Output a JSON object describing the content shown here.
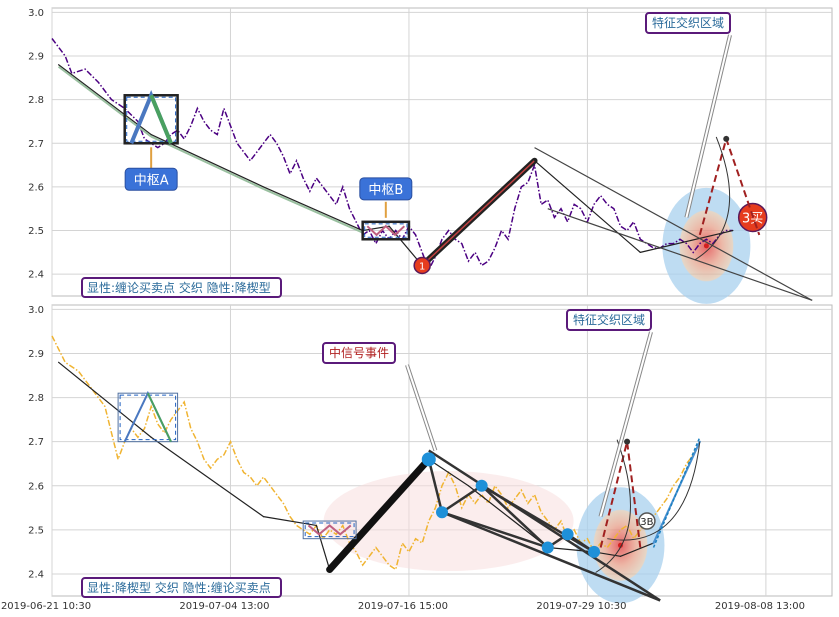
{
  "chart_data": [
    {
      "type": "line",
      "panel": "top",
      "ylim": [
        2.35,
        3.01
      ],
      "yticks": [
        2.4,
        2.5,
        2.6,
        2.7,
        2.8,
        2.9,
        3.0
      ],
      "grid": true,
      "series_color": "#4b0082",
      "price": [
        [
          0,
          2.94
        ],
        [
          2,
          2.9
        ],
        [
          3,
          2.86
        ],
        [
          5,
          2.87
        ],
        [
          7,
          2.84
        ],
        [
          9,
          2.8
        ],
        [
          11,
          2.78
        ],
        [
          13,
          2.75
        ],
        [
          14,
          2.71
        ],
        [
          16,
          2.69
        ],
        [
          17,
          2.7
        ],
        [
          18,
          2.72
        ],
        [
          19,
          2.73
        ],
        [
          20,
          2.71
        ],
        [
          21,
          2.74
        ],
        [
          22,
          2.78
        ],
        [
          23,
          2.75
        ],
        [
          24,
          2.73
        ],
        [
          25,
          2.72
        ],
        [
          26,
          2.78
        ],
        [
          27,
          2.74
        ],
        [
          28,
          2.7
        ],
        [
          29,
          2.68
        ],
        [
          30,
          2.66
        ],
        [
          31,
          2.68
        ],
        [
          32,
          2.7
        ],
        [
          33,
          2.72
        ],
        [
          34,
          2.7
        ],
        [
          35,
          2.67
        ],
        [
          36,
          2.63
        ],
        [
          37,
          2.66
        ],
        [
          38,
          2.62
        ],
        [
          39,
          2.59
        ],
        [
          40,
          2.62
        ],
        [
          41,
          2.6
        ],
        [
          42,
          2.58
        ],
        [
          43,
          2.56
        ],
        [
          44,
          2.6
        ],
        [
          45,
          2.55
        ],
        [
          46,
          2.52
        ],
        [
          47,
          2.49
        ],
        [
          48,
          2.5
        ],
        [
          49,
          2.47
        ],
        [
          50,
          2.5
        ],
        [
          51,
          2.48
        ],
        [
          52,
          2.5
        ],
        [
          53,
          2.48
        ],
        [
          54,
          2.51
        ],
        [
          55,
          2.49
        ],
        [
          56,
          2.45
        ],
        [
          57,
          2.41
        ],
        [
          58,
          2.44
        ],
        [
          59,
          2.48
        ],
        [
          60,
          2.5
        ],
        [
          61,
          2.48
        ],
        [
          62,
          2.47
        ],
        [
          63,
          2.43
        ],
        [
          64,
          2.45
        ],
        [
          65,
          2.42
        ],
        [
          66,
          2.43
        ],
        [
          67,
          2.46
        ],
        [
          68,
          2.5
        ],
        [
          69,
          2.48
        ],
        [
          70,
          2.55
        ],
        [
          71,
          2.6
        ],
        [
          72,
          2.61
        ],
        [
          73,
          2.65
        ],
        [
          74,
          2.56
        ],
        [
          75,
          2.57
        ],
        [
          76,
          2.53
        ],
        [
          77,
          2.55
        ],
        [
          78,
          2.52
        ],
        [
          79,
          2.56
        ],
        [
          80,
          2.55
        ],
        [
          81,
          2.52
        ],
        [
          82,
          2.56
        ],
        [
          83,
          2.58
        ],
        [
          84,
          2.56
        ],
        [
          85,
          2.55
        ],
        [
          86,
          2.51
        ],
        [
          87,
          2.5
        ],
        [
          88,
          2.52
        ],
        [
          89,
          2.48
        ],
        [
          90,
          2.47
        ],
        [
          91,
          2.46
        ],
        [
          92,
          2.46
        ],
        [
          93,
          2.47
        ],
        [
          94,
          2.47
        ],
        [
          95,
          2.48
        ],
        [
          96,
          2.47
        ],
        [
          97,
          2.45
        ],
        [
          98,
          2.47
        ],
        [
          99,
          2.48
        ],
        [
          100,
          2.47
        ],
        [
          101,
          2.49
        ],
        [
          102,
          2.5
        ],
        [
          103,
          2.5
        ]
      ],
      "trend": [
        [
          1,
          2.88
        ],
        [
          15,
          2.72
        ],
        [
          32,
          2.6
        ],
        [
          47,
          2.5
        ],
        [
          51,
          2.51
        ],
        [
          56,
          2.42
        ],
        [
          73,
          2.66
        ],
        [
          89,
          2.45
        ],
        [
          103,
          2.5
        ]
      ],
      "pivots": [
        {
          "label": "中枢A",
          "x0": 11,
          "x1": 19,
          "y0": 2.7,
          "y1": 2.81
        },
        {
          "label": "中枢B",
          "x0": 47,
          "x1": 54,
          "y0": 2.48,
          "y1": 2.52
        }
      ],
      "signals": [
        {
          "label": "1",
          "x": 56,
          "y": 2.42
        },
        {
          "label": "3买",
          "x": 106,
          "y": 2.53
        }
      ],
      "annotations": [
        "特征交织区域"
      ],
      "legend_text": "显性:缠论买卖点 交织 隐性:降楔型"
    },
    {
      "type": "line",
      "panel": "bottom",
      "ylim": [
        2.35,
        3.01
      ],
      "yticks": [
        2.4,
        2.5,
        2.6,
        2.7,
        2.8,
        2.9,
        3.0
      ],
      "grid": true,
      "series_color": "#f0b432",
      "price": [
        [
          0,
          2.94
        ],
        [
          2,
          2.88
        ],
        [
          4,
          2.86
        ],
        [
          6,
          2.82
        ],
        [
          8,
          2.78
        ],
        [
          9,
          2.72
        ],
        [
          10,
          2.66
        ],
        [
          11,
          2.7
        ],
        [
          12,
          2.73
        ],
        [
          13,
          2.71
        ],
        [
          14,
          2.73
        ],
        [
          15,
          2.78
        ],
        [
          16,
          2.74
        ],
        [
          17,
          2.72
        ],
        [
          18,
          2.75
        ],
        [
          19,
          2.77
        ],
        [
          20,
          2.79
        ],
        [
          21,
          2.73
        ],
        [
          22,
          2.7
        ],
        [
          23,
          2.66
        ],
        [
          24,
          2.64
        ],
        [
          25,
          2.66
        ],
        [
          26,
          2.67
        ],
        [
          27,
          2.7
        ],
        [
          28,
          2.66
        ],
        [
          29,
          2.63
        ],
        [
          30,
          2.62
        ],
        [
          31,
          2.6
        ],
        [
          32,
          2.62
        ],
        [
          33,
          2.6
        ],
        [
          34,
          2.58
        ],
        [
          35,
          2.56
        ],
        [
          36,
          2.53
        ],
        [
          37,
          2.51
        ],
        [
          38,
          2.5
        ],
        [
          39,
          2.49
        ],
        [
          40,
          2.51
        ],
        [
          41,
          2.48
        ],
        [
          42,
          2.5
        ],
        [
          43,
          2.49
        ],
        [
          44,
          2.51
        ],
        [
          45,
          2.47
        ],
        [
          46,
          2.45
        ],
        [
          47,
          2.42
        ],
        [
          48,
          2.44
        ],
        [
          49,
          2.46
        ],
        [
          50,
          2.44
        ],
        [
          51,
          2.42
        ],
        [
          52,
          2.41
        ],
        [
          53,
          2.47
        ],
        [
          54,
          2.45
        ],
        [
          55,
          2.48
        ],
        [
          56,
          2.47
        ],
        [
          57,
          2.52
        ],
        [
          58,
          2.55
        ],
        [
          59,
          2.6
        ],
        [
          60,
          2.63
        ],
        [
          61,
          2.6
        ],
        [
          62,
          2.55
        ],
        [
          63,
          2.58
        ],
        [
          64,
          2.56
        ],
        [
          65,
          2.58
        ],
        [
          66,
          2.56
        ],
        [
          67,
          2.6
        ],
        [
          68,
          2.58
        ],
        [
          69,
          2.55
        ],
        [
          70,
          2.57
        ],
        [
          71,
          2.59
        ],
        [
          72,
          2.56
        ],
        [
          73,
          2.58
        ],
        [
          74,
          2.54
        ],
        [
          75,
          2.52
        ],
        [
          76,
          2.5
        ],
        [
          77,
          2.52
        ],
        [
          78,
          2.48
        ],
        [
          79,
          2.5
        ],
        [
          80,
          2.47
        ],
        [
          81,
          2.48
        ],
        [
          82,
          2.45
        ],
        [
          83,
          2.47
        ],
        [
          84,
          2.46
        ],
        [
          85,
          2.48
        ],
        [
          86,
          2.5
        ],
        [
          87,
          2.51
        ],
        [
          88,
          2.48
        ],
        [
          89,
          2.5
        ],
        [
          90,
          2.52
        ],
        [
          91,
          2.53
        ],
        [
          92,
          2.55
        ],
        [
          93,
          2.57
        ],
        [
          94,
          2.6
        ],
        [
          95,
          2.62
        ],
        [
          96,
          2.65
        ],
        [
          97,
          2.67
        ],
        [
          98,
          2.7
        ]
      ],
      "trend": [
        [
          1,
          2.88
        ],
        [
          15,
          2.71
        ],
        [
          32,
          2.53
        ],
        [
          40,
          2.51
        ],
        [
          42,
          2.41
        ],
        [
          57,
          2.66
        ],
        [
          63,
          2.6
        ],
        [
          75,
          2.46
        ],
        [
          82,
          2.45
        ],
        [
          86,
          2.44
        ],
        [
          91,
          2.47
        ],
        [
          98,
          2.7
        ]
      ],
      "pivots": [
        {
          "x0": 10,
          "x1": 19,
          "y0": 2.7,
          "y1": 2.81
        },
        {
          "x0": 38,
          "x1": 46,
          "y0": 2.48,
          "y1": 2.52
        }
      ],
      "signals": [
        {
          "label": "3B",
          "x": 90,
          "y": 2.52
        }
      ],
      "annotations": [
        "中信号事件",
        "特征交织区域"
      ],
      "legend_text": "显性:降楔型 交织 隐性:缠论买卖点"
    }
  ],
  "x_axis": {
    "ticks": [
      {
        "x": 0,
        "label": "2019-06-21 10:30"
      },
      {
        "x": 27,
        "label": "2019-07-04 13:00"
      },
      {
        "x": 54,
        "label": "2019-07-16 15:00"
      },
      {
        "x": 81,
        "label": "2019-07-29 10:30"
      },
      {
        "x": 108,
        "label": "2019-08-08 13:00"
      }
    ]
  }
}
